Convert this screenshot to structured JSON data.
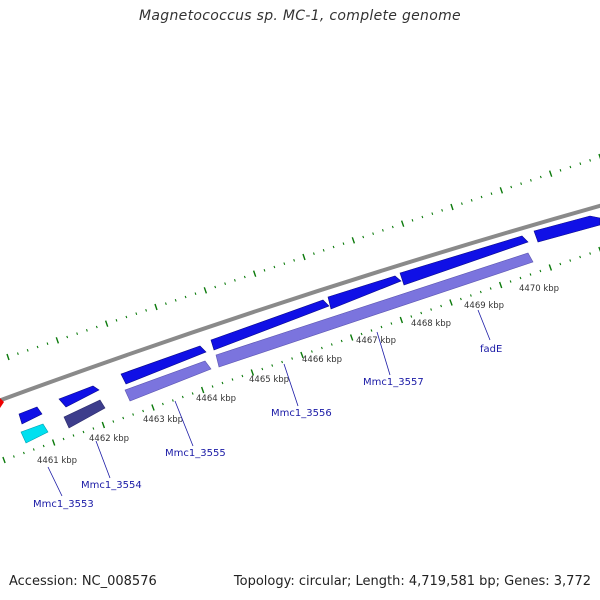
{
  "title": "Magnetococcus sp. MC-1, complete genome",
  "accession": "Accession: NC_008576",
  "genome_info": "Topology: circular; Length: 4,719,581 bp; Genes: 3,772",
  "colors": {
    "backbone": "#8a8a8a",
    "tick_major": "#0b7a0b",
    "tick_minor": "#0b7a0b",
    "cds_forward": "#1010e6",
    "cds_reverse": "#7b74de",
    "cds_reverse_dark": "#3d3d8c",
    "rna": "#00e0f0",
    "partial_red": "#ee0000",
    "gene_label": "#1a1aa6",
    "kbp_label": "#333333"
  },
  "scale_labels": [
    "4461 kbp",
    "4462 kbp",
    "4463 kbp",
    "4464 kbp",
    "4465 kbp",
    "4466 kbp",
    "4467 kbp",
    "4468 kbp",
    "4469 kbp",
    "4470 kbp"
  ],
  "gene_labels": [
    "Mmc1_3553",
    "Mmc1_3554",
    "Mmc1_3555",
    "Mmc1_3556",
    "Mmc1_3557",
    "fadE"
  ]
}
